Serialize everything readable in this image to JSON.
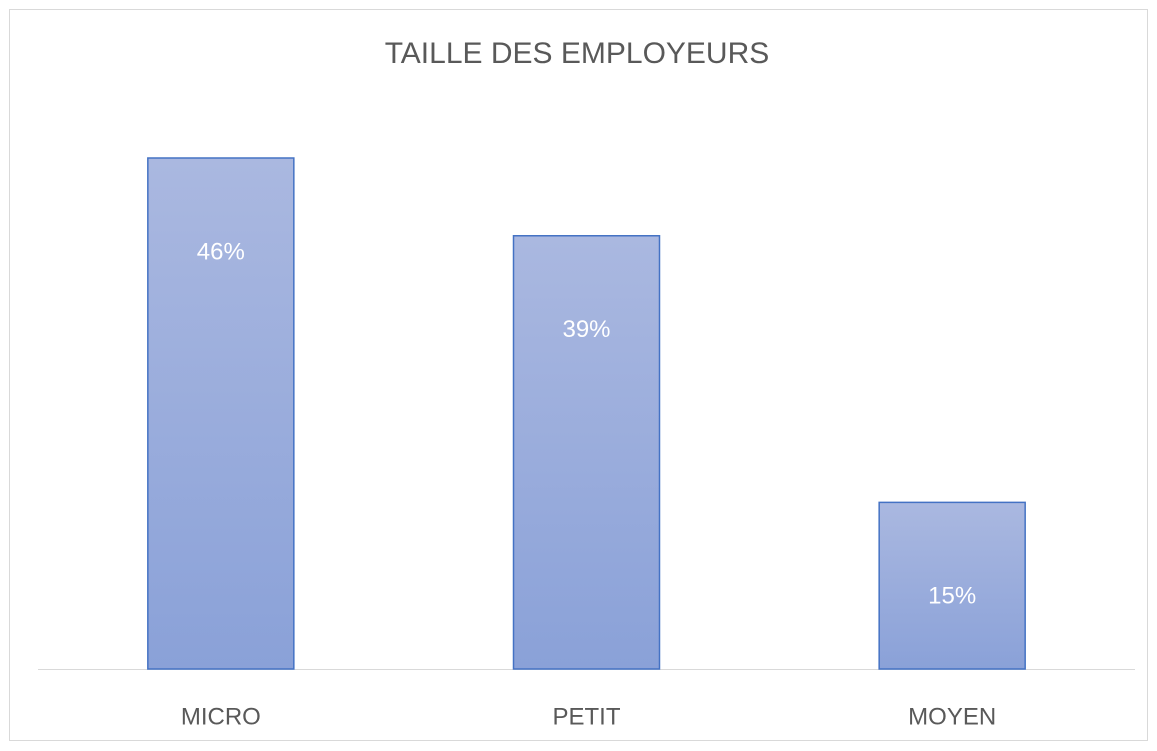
{
  "chart_data": {
    "type": "bar",
    "title": "TAILLE DES EMPLOYEURS",
    "categories": [
      "MICRO",
      "PETIT",
      "MOYEN"
    ],
    "values": [
      46,
      39,
      15
    ],
    "value_labels": [
      "46%",
      "39%",
      "15%"
    ],
    "color": "#4472c4"
  }
}
